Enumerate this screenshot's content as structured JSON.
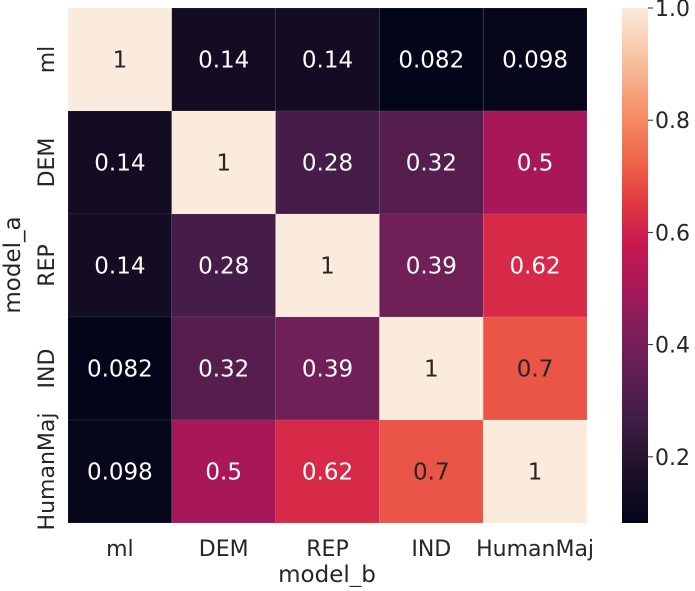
{
  "chart_data": {
    "type": "heatmap",
    "title": "",
    "xlabel": "model_b",
    "ylabel": "model_a",
    "x_categories": [
      "ml",
      "DEM",
      "REP",
      "IND",
      "HumanMaj"
    ],
    "y_categories": [
      "ml",
      "DEM",
      "REP",
      "IND",
      "HumanMaj"
    ],
    "values": [
      [
        1,
        0.14,
        0.14,
        0.082,
        0.098
      ],
      [
        0.14,
        1,
        0.28,
        0.32,
        0.5
      ],
      [
        0.14,
        0.28,
        1,
        0.39,
        0.62
      ],
      [
        0.082,
        0.32,
        0.39,
        1,
        0.7
      ],
      [
        0.098,
        0.5,
        0.62,
        0.7,
        1
      ]
    ],
    "annotations": [
      [
        "1",
        "0.14",
        "0.14",
        "0.082",
        "0.098"
      ],
      [
        "0.14",
        "1",
        "0.28",
        "0.32",
        "0.5"
      ],
      [
        "0.14",
        "0.28",
        "1",
        "0.39",
        "0.62"
      ],
      [
        "0.082",
        "0.32",
        "0.39",
        "1",
        "0.7"
      ],
      [
        "0.098",
        "0.5",
        "0.62",
        "0.7",
        "1"
      ]
    ],
    "colormap": "rocket",
    "vmin": 0.082,
    "vmax": 1.0,
    "colorbar": {
      "ticks": [
        0.2,
        0.4,
        0.6,
        0.8,
        1.0
      ],
      "tick_labels": [
        "0.2",
        "0.4",
        "0.6",
        "0.8",
        "1.0"
      ],
      "placement": "right"
    }
  }
}
